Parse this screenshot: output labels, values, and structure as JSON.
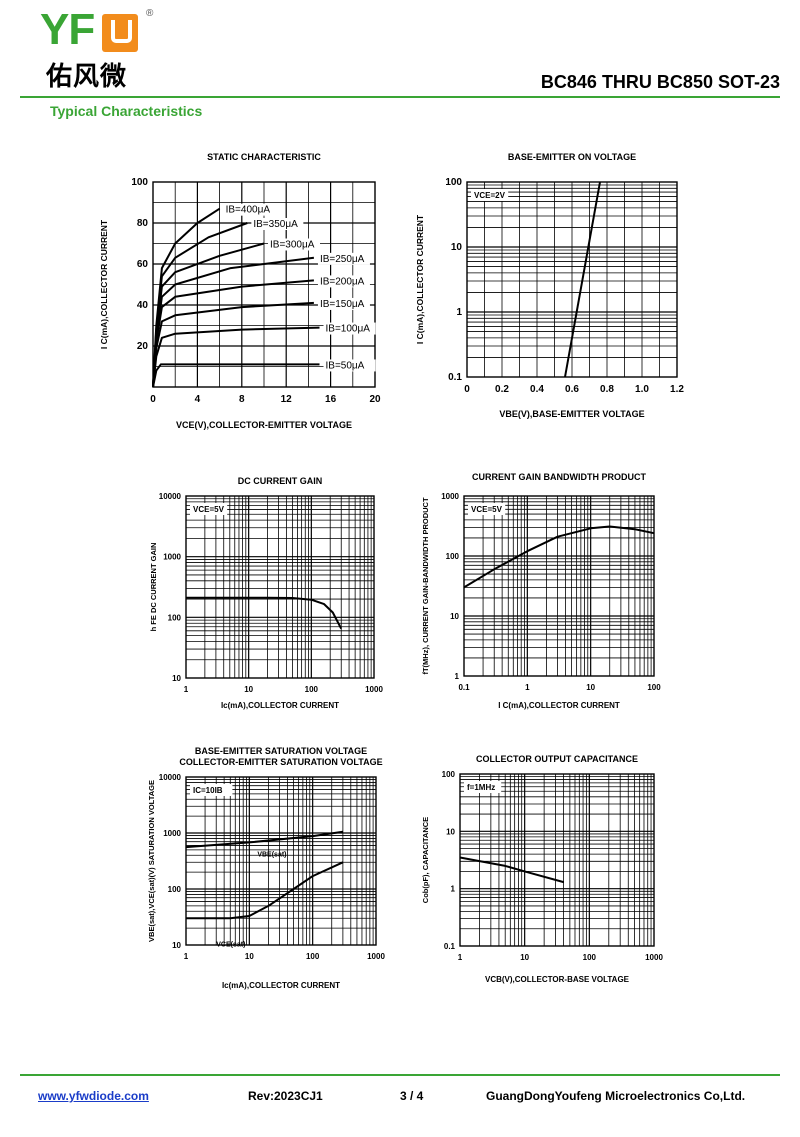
{
  "header": {
    "logo_text": "YFW",
    "logo_cn": "佑风微",
    "logo_reg": "®",
    "title": "BC846 THRU BC850 SOT-23",
    "section": "Typical Characteristics",
    "brand_green": "#3aa535",
    "brand_orange": "#f28c1c"
  },
  "footer": {
    "website": "www.yfwdiode.com",
    "revision": "Rev:2023CJ1",
    "page": "3 / 4",
    "company": "GuangDongYoufeng Microelectronics Co,Ltd."
  },
  "chart_data": [
    {
      "id": "static",
      "type": "line",
      "title": "STATIC CHARACTERISTIC",
      "xlabel": "VCE(V),COLLECTOR-EMITTER VOLTAGE",
      "ylabel": "I C(mA),COLLECTOR CURRENT",
      "xscale": "linear",
      "yscale": "linear",
      "xlim": [
        0,
        20
      ],
      "ylim": [
        0,
        100
      ],
      "xticks": [
        "0",
        "4",
        "8",
        "12",
        "16",
        "20"
      ],
      "yticks": [
        "20",
        "40",
        "60",
        "80",
        "100"
      ],
      "grid": true,
      "series": [
        {
          "name": "IB=400μA",
          "points": [
            [
              0,
              0
            ],
            [
              0.3,
              30
            ],
            [
              0.8,
              58
            ],
            [
              2,
              70
            ],
            [
              4,
              80
            ],
            [
              6,
              87
            ]
          ]
        },
        {
          "name": "IB=350μA",
          "points": [
            [
              0,
              0
            ],
            [
              0.3,
              28
            ],
            [
              0.8,
              54
            ],
            [
              2,
              63
            ],
            [
              5,
              73
            ],
            [
              8.5,
              80
            ]
          ]
        },
        {
          "name": "IB=300μA",
          "points": [
            [
              0,
              0
            ],
            [
              0.3,
              26
            ],
            [
              0.8,
              49
            ],
            [
              2,
              56
            ],
            [
              6,
              64
            ],
            [
              10,
              70
            ]
          ]
        },
        {
          "name": "IB=250μA",
          "points": [
            [
              0,
              0
            ],
            [
              0.3,
              24
            ],
            [
              0.8,
              44
            ],
            [
              2,
              50
            ],
            [
              7,
              58
            ],
            [
              14.5,
              63
            ]
          ]
        },
        {
          "name": "IB=200μA",
          "points": [
            [
              0,
              0
            ],
            [
              0.3,
              22
            ],
            [
              0.8,
              39
            ],
            [
              2,
              44
            ],
            [
              8,
              49
            ],
            [
              14.5,
              52
            ]
          ]
        },
        {
          "name": "IB=150μA",
          "points": [
            [
              0,
              0
            ],
            [
              0.3,
              19
            ],
            [
              0.8,
              32
            ],
            [
              2,
              35
            ],
            [
              8,
              39
            ],
            [
              14.5,
              41
            ]
          ]
        },
        {
          "name": "IB=100μA",
          "points": [
            [
              0,
              0
            ],
            [
              0.3,
              15
            ],
            [
              0.8,
              24
            ],
            [
              2,
              26
            ],
            [
              8,
              28
            ],
            [
              15,
              29
            ]
          ]
        },
        {
          "name": "IB=50μA",
          "points": [
            [
              0,
              0
            ],
            [
              0.3,
              8
            ],
            [
              0.7,
              11
            ],
            [
              2,
              11
            ],
            [
              8,
              11
            ],
            [
              15,
              11
            ]
          ]
        }
      ]
    },
    {
      "id": "vbe_on",
      "type": "line",
      "title": "BASE-EMITTER ON VOLTAGE",
      "xlabel": "VBE(V),BASE-EMITTER VOLTAGE",
      "ylabel": "I C(mA),COLLECTOR CURRENT",
      "xscale": "linear",
      "yscale": "log",
      "xlim": [
        0,
        1.2
      ],
      "ylim": [
        0.1,
        100
      ],
      "xticks": [
        "0",
        "0.2",
        "0.4",
        "0.6",
        "0.8",
        "1.0",
        "1.2"
      ],
      "yticks": [
        "0.1",
        "1",
        "10",
        "100"
      ],
      "annotation": "VCE=2V",
      "grid": true,
      "series": [
        {
          "points": [
            [
              0.56,
              0.1
            ],
            [
              0.76,
              100
            ]
          ]
        }
      ]
    },
    {
      "id": "hfe",
      "type": "line",
      "title": "DC CURRENT GAIN",
      "xlabel": "Ic(mA),COLLECTOR CURRENT",
      "ylabel": "h FE DC CURRENT GAIN",
      "xscale": "log",
      "yscale": "log",
      "xlim": [
        1,
        1000
      ],
      "ylim": [
        10,
        10000
      ],
      "xticks": [
        "1",
        "10",
        "100",
        "1000"
      ],
      "yticks": [
        "10",
        "100",
        "1000",
        "10000"
      ],
      "annotation": "VCE=5V",
      "grid": true,
      "series": [
        {
          "points": [
            [
              1,
              210
            ],
            [
              20,
              210
            ],
            [
              50,
              208
            ],
            [
              100,
              195
            ],
            [
              160,
              165
            ],
            [
              220,
              120
            ],
            [
              300,
              65
            ]
          ]
        }
      ]
    },
    {
      "id": "ft",
      "type": "line",
      "title": "CURRENT GAIN BANDWIDTH PRODUCT",
      "xlabel": "I C(mA),COLLECTOR CURRENT",
      "ylabel": "fT(MHz), CURRENT GAIN-BANDWIDTH PRODUCT",
      "xscale": "log",
      "yscale": "log",
      "xlim": [
        0.1,
        100
      ],
      "ylim": [
        1,
        1000
      ],
      "xticks": [
        "0.1",
        "1",
        "10",
        "100"
      ],
      "yticks": [
        "1",
        "10",
        "100",
        "1000"
      ],
      "annotation": "VCE=5V",
      "grid": true,
      "series": [
        {
          "points": [
            [
              0.1,
              30
            ],
            [
              0.3,
              60
            ],
            [
              1,
              120
            ],
            [
              3,
              210
            ],
            [
              10,
              290
            ],
            [
              20,
              310
            ],
            [
              50,
              280
            ],
            [
              100,
              240
            ]
          ]
        }
      ]
    },
    {
      "id": "vsat",
      "type": "line",
      "title": "BASE-EMITTER SATURATION VOLTAGE",
      "subtitle": "COLLECTOR-EMITTER SATURATION VOLTAGE",
      "xlabel": "Ic(mA),COLLECTOR CURRENT",
      "ylabel": "VBE(sat),VCE(sat)(V) SATURATION VOLTAGE",
      "xscale": "log",
      "yscale": "log",
      "xlim": [
        1,
        1000
      ],
      "ylim": [
        10,
        10000
      ],
      "xticks": [
        "1",
        "10",
        "100",
        "1000"
      ],
      "yticks": [
        "10",
        "100",
        "1000",
        "10000"
      ],
      "annotation": "IC=10IB",
      "grid": true,
      "series": [
        {
          "name": "VBE(sat)",
          "points": [
            [
              1,
              560
            ],
            [
              10,
              680
            ],
            [
              100,
              880
            ],
            [
              300,
              1050
            ]
          ]
        },
        {
          "name": "VCE(sat)",
          "points": [
            [
              1,
              30
            ],
            [
              5,
              30
            ],
            [
              10,
              33
            ],
            [
              20,
              50
            ],
            [
              50,
              100
            ],
            [
              100,
              170
            ],
            [
              300,
              300
            ]
          ]
        }
      ]
    },
    {
      "id": "cob",
      "type": "line",
      "title": "COLLECTOR OUTPUT CAPACITANCE",
      "xlabel": "VCB(V),COLLECTOR-BASE VOLTAGE",
      "ylabel": "Cob(pF), CAPACITANCE",
      "xscale": "log",
      "yscale": "log",
      "xlim": [
        1,
        1000
      ],
      "ylim": [
        0.1,
        100
      ],
      "xticks": [
        "1",
        "10",
        "100",
        "1000"
      ],
      "yticks": [
        "0.1",
        "1",
        "10",
        "100"
      ],
      "annotation": "f=1MHz",
      "grid": true,
      "series": [
        {
          "points": [
            [
              1,
              3.5
            ],
            [
              5,
              2.5
            ],
            [
              10,
              2.0
            ],
            [
              40,
              1.3
            ]
          ]
        }
      ]
    }
  ]
}
